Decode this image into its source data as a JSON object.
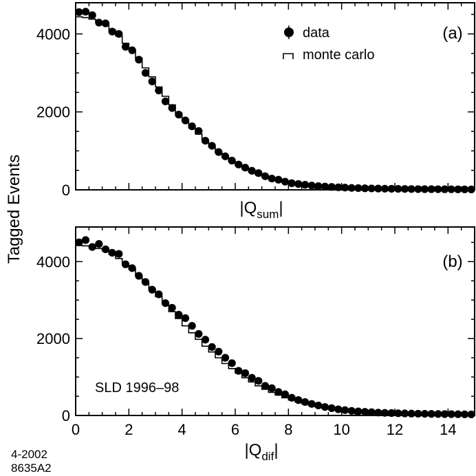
{
  "chart_data": [
    {
      "type": "scatter",
      "panel_label": "(a)",
      "xlabel": "|Q",
      "xlabel_subscript": "sum",
      "xlabel_suffix": "|",
      "ylabel": "Tagged Events",
      "xlim": [
        0,
        15
      ],
      "ylim": [
        0,
        4800
      ],
      "x_ticks": [
        0,
        2,
        4,
        6,
        8,
        10,
        12,
        14
      ],
      "x_tick_labels_shown": false,
      "y_ticks": [
        0,
        2000,
        4000
      ],
      "y_tick_labels": [
        "0",
        "2000",
        "4000"
      ],
      "legend": [
        {
          "name": "data",
          "marker": "filled-circle"
        },
        {
          "name": "monte carlo",
          "marker": "step-line"
        }
      ],
      "series": [
        {
          "name": "data",
          "x": [
            0.125,
            0.375,
            0.625,
            0.875,
            1.125,
            1.375,
            1.625,
            1.875,
            2.125,
            2.375,
            2.625,
            2.875,
            3.125,
            3.375,
            3.625,
            3.875,
            4.125,
            4.375,
            4.625,
            4.875,
            5.125,
            5.375,
            5.625,
            5.875,
            6.125,
            6.375,
            6.625,
            6.875,
            7.125,
            7.375,
            7.625,
            7.875,
            8.125,
            8.375,
            8.625,
            8.875,
            9.125,
            9.375,
            9.625,
            9.875,
            10.125,
            10.375,
            10.625,
            10.875,
            11.125,
            11.375,
            11.625,
            11.875,
            12.125,
            12.375,
            12.625,
            12.875,
            13.125,
            13.375,
            13.625,
            13.875,
            14.125,
            14.375,
            14.625,
            14.875
          ],
          "values": [
            4560,
            4570,
            4480,
            4290,
            4270,
            4060,
            4000,
            3670,
            3580,
            3340,
            3000,
            2780,
            2550,
            2270,
            2100,
            1930,
            1780,
            1630,
            1510,
            1260,
            1130,
            970,
            860,
            750,
            650,
            570,
            490,
            430,
            350,
            290,
            260,
            210,
            170,
            150,
            130,
            110,
            95,
            85,
            75,
            65,
            58,
            50,
            45,
            40,
            36,
            33,
            30,
            27,
            25,
            23,
            21,
            19,
            18,
            17,
            16,
            15,
            14,
            13,
            12,
            11
          ]
        },
        {
          "name": "monte carlo",
          "x": [
            0.125,
            0.375,
            0.625,
            0.875,
            1.125,
            1.375,
            1.625,
            1.875,
            2.125,
            2.375,
            2.625,
            2.875,
            3.125,
            3.375,
            3.625,
            3.875,
            4.125,
            4.375,
            4.625,
            4.875,
            5.125,
            5.375,
            5.625,
            5.875,
            6.125,
            6.375,
            6.625,
            6.875,
            7.125,
            7.375,
            7.625,
            7.875,
            8.125,
            8.375,
            8.625,
            8.875,
            9.125,
            9.375,
            9.625,
            9.875,
            10.125,
            10.375,
            10.625,
            10.875,
            11.125,
            11.375,
            11.625,
            11.875,
            12.125,
            12.375,
            12.625,
            12.875,
            13.125,
            13.375,
            13.625,
            13.875,
            14.125,
            14.375,
            14.625,
            14.875
          ],
          "values": [
            4440,
            4420,
            4380,
            4320,
            4230,
            4100,
            3950,
            3760,
            3580,
            3380,
            3130,
            2900,
            2640,
            2400,
            2180,
            1970,
            1780,
            1590,
            1430,
            1260,
            1110,
            960,
            840,
            730,
            630,
            540,
            460,
            390,
            330,
            280,
            240,
            200,
            170,
            145,
            125,
            105,
            90,
            80,
            70,
            60,
            54,
            48,
            43,
            39,
            35,
            32,
            29,
            26,
            24,
            22,
            20,
            19,
            18,
            17,
            16,
            15,
            14,
            13,
            12,
            11
          ]
        }
      ]
    },
    {
      "type": "scatter",
      "panel_label": "(b)",
      "xlabel": "|Q",
      "xlabel_subscript": "dif",
      "xlabel_suffix": "|",
      "ylabel": "Tagged Events",
      "xlim": [
        0,
        15
      ],
      "ylim": [
        0,
        4900
      ],
      "x_ticks": [
        0,
        2,
        4,
        6,
        8,
        10,
        12,
        14
      ],
      "x_tick_labels": [
        "0",
        "2",
        "4",
        "6",
        "8",
        "10",
        "12",
        "14"
      ],
      "y_ticks": [
        0,
        2000,
        4000
      ],
      "y_tick_labels": [
        "0",
        "2000",
        "4000"
      ],
      "annotation": "SLD 1996–98",
      "series": [
        {
          "name": "data",
          "x": [
            0.125,
            0.375,
            0.625,
            0.875,
            1.125,
            1.375,
            1.625,
            1.875,
            2.125,
            2.375,
            2.625,
            2.875,
            3.125,
            3.375,
            3.625,
            3.875,
            4.125,
            4.375,
            4.625,
            4.875,
            5.125,
            5.375,
            5.625,
            5.875,
            6.125,
            6.375,
            6.625,
            6.875,
            7.125,
            7.375,
            7.625,
            7.875,
            8.125,
            8.375,
            8.625,
            8.875,
            9.125,
            9.375,
            9.625,
            9.875,
            10.125,
            10.375,
            10.625,
            10.875,
            11.125,
            11.375,
            11.625,
            11.875,
            12.125,
            12.375,
            12.625,
            12.875,
            13.125,
            13.375,
            13.625,
            13.875,
            14.125,
            14.375,
            14.625,
            14.875
          ],
          "values": [
            4500,
            4560,
            4380,
            4460,
            4320,
            4230,
            4200,
            3930,
            3830,
            3630,
            3470,
            3270,
            3150,
            2920,
            2800,
            2620,
            2530,
            2330,
            2120,
            1970,
            1780,
            1660,
            1500,
            1360,
            1160,
            1100,
            980,
            900,
            770,
            710,
            610,
            550,
            460,
            400,
            350,
            300,
            260,
            220,
            190,
            160,
            140,
            120,
            105,
            95,
            85,
            75,
            68,
            62,
            57,
            53,
            49,
            46,
            43,
            40,
            38,
            36,
            34,
            32,
            30,
            28
          ]
        },
        {
          "name": "monte carlo",
          "x": [
            0.125,
            0.375,
            0.625,
            0.875,
            1.125,
            1.375,
            1.625,
            1.875,
            2.125,
            2.375,
            2.625,
            2.875,
            3.125,
            3.375,
            3.625,
            3.875,
            4.125,
            4.375,
            4.625,
            4.875,
            5.125,
            5.375,
            5.625,
            5.875,
            6.125,
            6.375,
            6.625,
            6.875,
            7.125,
            7.375,
            7.625,
            7.875,
            8.125,
            8.375,
            8.625,
            8.875,
            9.125,
            9.375,
            9.625,
            9.875,
            10.125,
            10.375,
            10.625,
            10.875,
            11.125,
            11.375,
            11.625,
            11.875,
            12.125,
            12.375,
            12.625,
            12.875,
            13.125,
            13.375,
            13.625,
            13.875,
            14.125,
            14.375,
            14.625,
            14.875
          ],
          "values": [
            4420,
            4410,
            4380,
            4340,
            4280,
            4190,
            4080,
            3950,
            3800,
            3640,
            3460,
            3280,
            3090,
            2900,
            2700,
            2520,
            2330,
            2150,
            1980,
            1800,
            1650,
            1500,
            1350,
            1220,
            1100,
            980,
            870,
            770,
            680,
            600,
            530,
            460,
            400,
            350,
            300,
            260,
            225,
            195,
            170,
            150,
            130,
            115,
            100,
            90,
            80,
            72,
            65,
            59,
            54,
            50,
            46,
            43,
            40,
            38,
            36,
            34,
            32,
            30,
            28,
            26
          ]
        }
      ]
    }
  ],
  "footer": {
    "line1": "4-2002",
    "line2": "8635A2"
  }
}
